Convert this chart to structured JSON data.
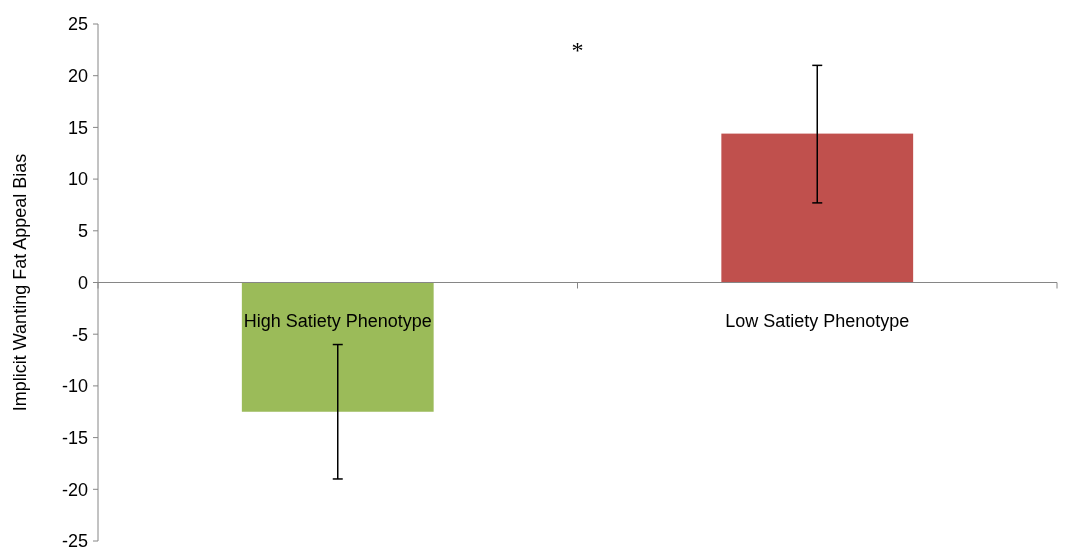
{
  "chart_data": {
    "type": "bar",
    "ylabel": "Implicit Wanting Fat Appeal Bias",
    "categories": [
      "High Satiety Phenotype",
      "Low Satiety Phenotype"
    ],
    "values": [
      -12.5,
      14.4
    ],
    "colors": [
      "#9bbb59",
      "#c0504d"
    ],
    "errors": [
      [
        -19,
        -6
      ],
      [
        7.7,
        21
      ]
    ],
    "ylim": [
      -25,
      25
    ],
    "yticks": [
      -25,
      -20,
      -15,
      -10,
      -5,
      0,
      5,
      10,
      15,
      20,
      25
    ],
    "annotations": [
      "*"
    ]
  }
}
